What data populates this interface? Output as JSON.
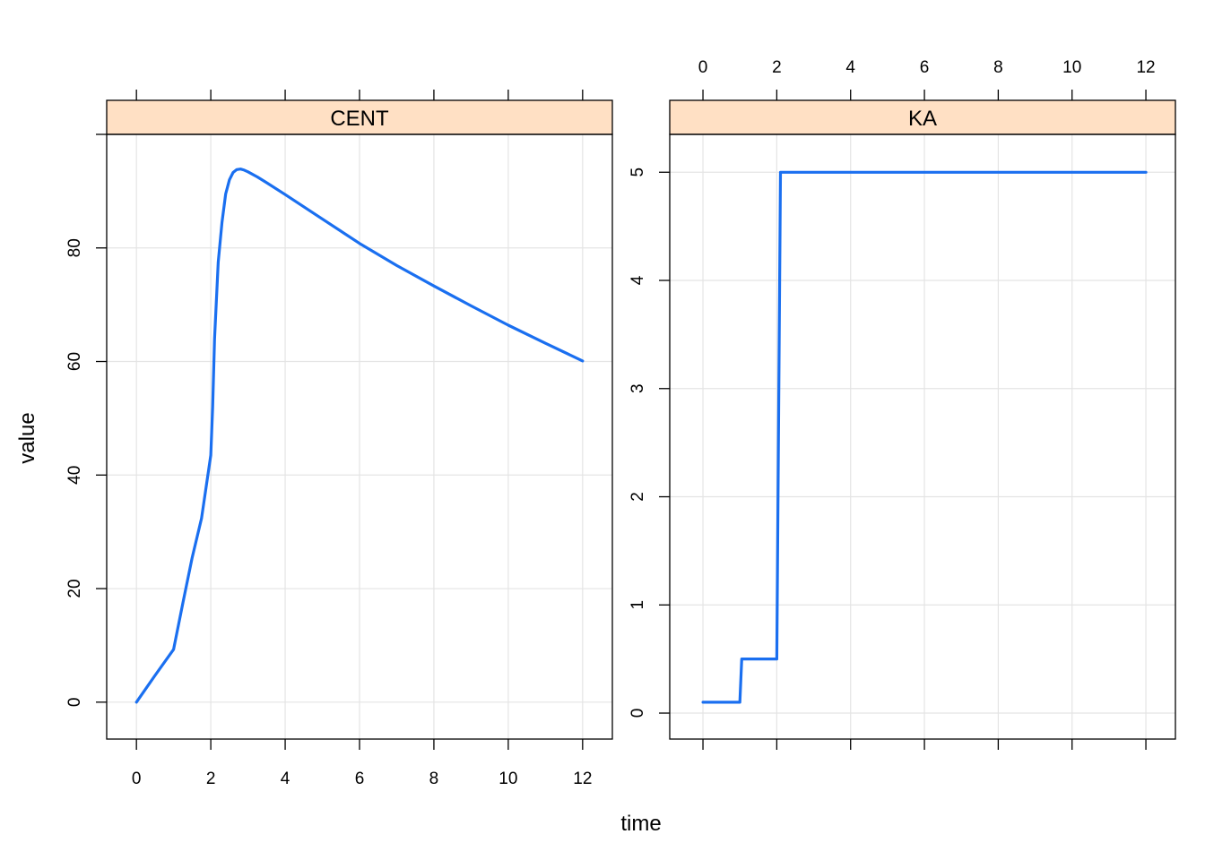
{
  "chart_data": {
    "type": "line",
    "xlabel": "time",
    "ylabel": "value",
    "grid": true,
    "line_color": "#1a6ff0",
    "strip_color": "#ffe0c4",
    "panels": [
      {
        "name": "CENT",
        "xlim": [
          -0.8,
          12.8
        ],
        "ylim": [
          -6.5,
          100
        ],
        "x_ticks": [
          0,
          2,
          4,
          6,
          8,
          10,
          12
        ],
        "y_ticks": [
          0,
          20,
          40,
          60,
          80
        ],
        "x": [
          0,
          0.5,
          1,
          1.25,
          1.5,
          1.75,
          2,
          2.05,
          2.1,
          2.2,
          2.3,
          2.4,
          2.5,
          2.6,
          2.7,
          2.8,
          2.9,
          3,
          3.25,
          3.5,
          4,
          5,
          6,
          7,
          8,
          9,
          10,
          11,
          12
        ],
        "y": [
          0,
          4.7,
          9.3,
          17.5,
          25.5,
          32.4,
          43.5,
          52,
          64,
          77.5,
          84.5,
          89.5,
          92,
          93.3,
          93.8,
          93.9,
          93.7,
          93.4,
          92.5,
          91.5,
          89.4,
          85.1,
          80.8,
          76.9,
          73.3,
          69.8,
          66.4,
          63.2,
          60.1
        ]
      },
      {
        "name": "KA",
        "xlim": [
          -0.9,
          12.8
        ],
        "ylim": [
          -0.24,
          5.35
        ],
        "x_ticks": [
          0,
          2,
          4,
          6,
          8,
          10,
          12
        ],
        "y_ticks": [
          0,
          1,
          2,
          3,
          4,
          5
        ],
        "x": [
          0,
          1,
          1.05,
          2,
          2.1,
          12
        ],
        "y": [
          0.1,
          0.1,
          0.5,
          0.5,
          5,
          5
        ]
      }
    ]
  }
}
